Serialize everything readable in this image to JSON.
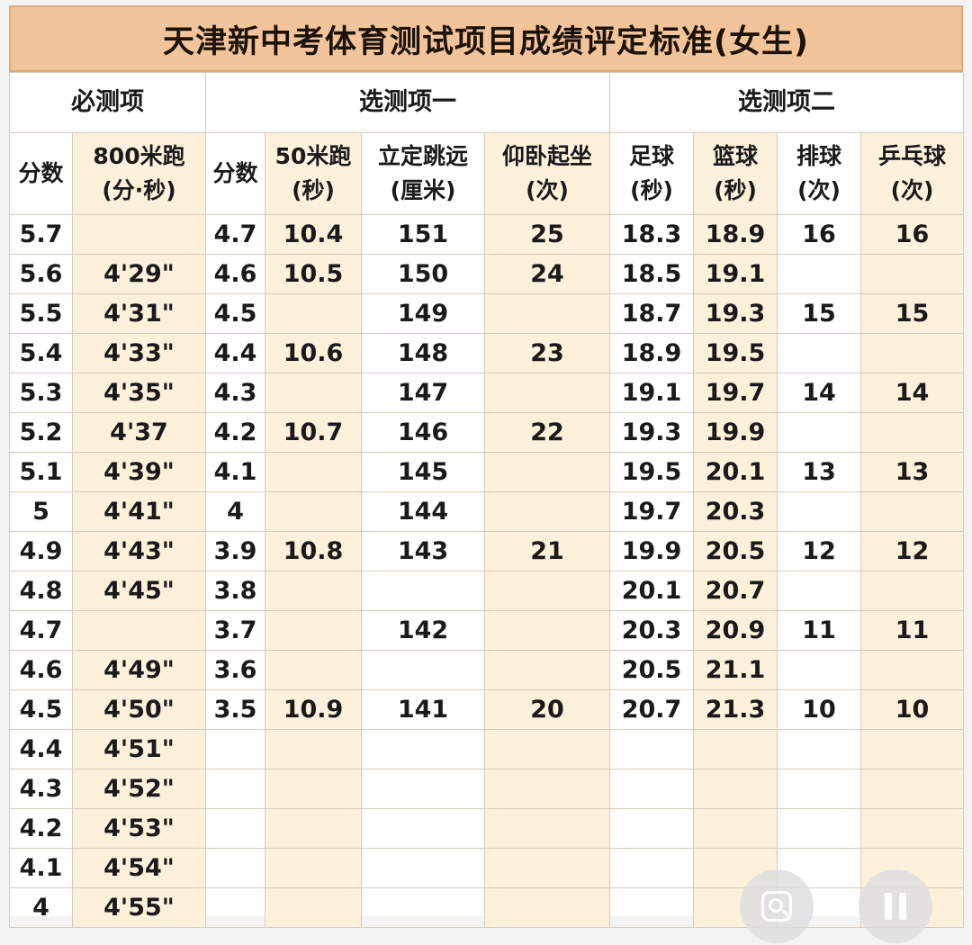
{
  "title": "天津新中考体育测试项目成绩评定标准(女生)",
  "groups": [
    "必测项",
    "选测项一",
    "选测项二"
  ],
  "columns": [
    [
      "分数"
    ],
    [
      "800米跑",
      "(分·秒)"
    ],
    [
      "分数"
    ],
    [
      "50米跑",
      "(秒)"
    ],
    [
      "立定跳远",
      "(厘米)"
    ],
    [
      "仰卧起坐",
      "(次)"
    ],
    [
      "足球",
      "(秒)"
    ],
    [
      "篮球",
      "(秒)"
    ],
    [
      "排球",
      "(次)"
    ],
    [
      "乒乓球",
      "(次)"
    ]
  ],
  "rows": [
    [
      "5.7",
      "",
      "4.7",
      "10.4",
      "151",
      "25",
      "18.3",
      "18.9",
      "16",
      "16"
    ],
    [
      "5.6",
      "4'29\"",
      "4.6",
      "10.5",
      "150",
      "24",
      "18.5",
      "19.1",
      "",
      ""
    ],
    [
      "5.5",
      "4'31\"",
      "4.5",
      "",
      "149",
      "",
      "18.7",
      "19.3",
      "15",
      "15"
    ],
    [
      "5.4",
      "4'33\"",
      "4.4",
      "10.6",
      "148",
      "23",
      "18.9",
      "19.5",
      "",
      ""
    ],
    [
      "5.3",
      "4'35\"",
      "4.3",
      "",
      "147",
      "",
      "19.1",
      "19.7",
      "14",
      "14"
    ],
    [
      "5.2",
      "4'37",
      "4.2",
      "10.7",
      "146",
      "22",
      "19.3",
      "19.9",
      "",
      ""
    ],
    [
      "5.1",
      "4'39\"",
      "4.1",
      "",
      "145",
      "",
      "19.5",
      "20.1",
      "13",
      "13"
    ],
    [
      "5",
      "4'41\"",
      "4",
      "",
      "144",
      "",
      "19.7",
      "20.3",
      "",
      ""
    ],
    [
      "4.9",
      "4'43\"",
      "3.9",
      "10.8",
      "143",
      "21",
      "19.9",
      "20.5",
      "12",
      "12"
    ],
    [
      "4.8",
      "4'45\"",
      "3.8",
      "",
      "",
      "",
      "20.1",
      "20.7",
      "",
      ""
    ],
    [
      "4.7",
      "",
      "3.7",
      "",
      "142",
      "",
      "20.3",
      "20.9",
      "11",
      "11"
    ],
    [
      "4.6",
      "4'49\"",
      "3.6",
      "",
      "",
      "",
      "20.5",
      "21.1",
      "",
      ""
    ],
    [
      "4.5",
      "4'50\"",
      "3.5",
      "10.9",
      "141",
      "20",
      "20.7",
      "21.3",
      "10",
      "10"
    ],
    [
      "4.4",
      "4'51\"",
      "",
      "",
      "",
      "",
      "",
      "",
      "",
      ""
    ],
    [
      "4.3",
      "4'52\"",
      "",
      "",
      "",
      "",
      "",
      "",
      "",
      ""
    ],
    [
      "4.2",
      "4'53\"",
      "",
      "",
      "",
      "",
      "",
      "",
      "",
      ""
    ],
    [
      "4.1",
      "4'54\"",
      "",
      "",
      "",
      "",
      "",
      "",
      "",
      ""
    ],
    [
      "4",
      "4'55\"",
      "",
      "",
      "",
      "",
      "",
      "",
      "",
      ""
    ]
  ],
  "icons": {
    "lens_button": "image-search-icon",
    "pause_button": "pause-icon"
  }
}
